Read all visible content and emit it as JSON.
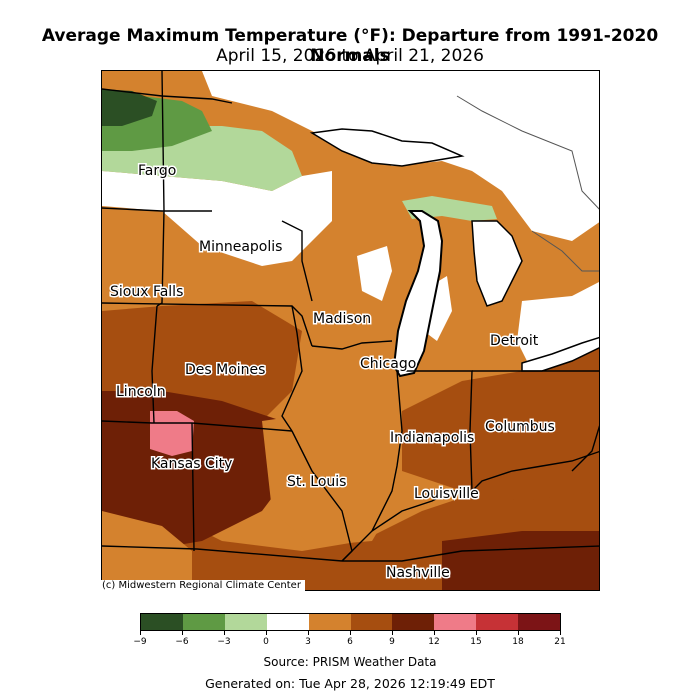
{
  "title": "Average Maximum Temperature (°F): Departure from 1991-2020 Normals",
  "subtitle": "April 15, 2026 to April 21, 2026",
  "credit": "(c) Midwestern Regional Climate Center",
  "source": "Source: PRISM Weather Data",
  "generated": "Generated on: Tue Apr 28, 2026 12:19:49 EDT",
  "cities": [
    "Fargo",
    "Minneapolis",
    "Sioux Falls",
    "Madison",
    "Detroit",
    "Chicago",
    "Des Moines",
    "Lincoln",
    "Columbus",
    "Indianapolis",
    "Kansas City",
    "St. Louis",
    "Louisville",
    "Nashville"
  ],
  "legend": {
    "ticks": [
      "−9",
      "−6",
      "−3",
      "0",
      "3",
      "6",
      "9",
      "12",
      "15",
      "18",
      "21"
    ],
    "colors": [
      "#2b4f24",
      "#5f9a44",
      "#b2d89a",
      "#ffffff",
      "#d4822e",
      "#a64e10",
      "#6e2006",
      "#ef7b88",
      "#c63236",
      "#7c1416"
    ]
  }
}
